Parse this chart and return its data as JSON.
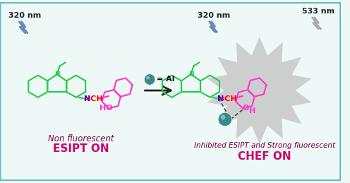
{
  "bg_color": "#eef8f7",
  "border_color": "#5bbcb8",
  "left_label_line1": "Non fluorescent",
  "left_label_line2": "ESIPT ON",
  "right_label_line1": "Inhibited ESIPT and Strong fluorescent",
  "right_label_line2": "CHEF ON",
  "lightning_color_blue": "#6688bb",
  "lightning_color_gray": "#aaaaaa",
  "carbazole_color": "#22cc44",
  "naphthol_color": "#ff33cc",
  "imine_n_color": "#0000ff",
  "imine_ch_color": "#ff0000",
  "label_dark_red": "#7a0045",
  "label_magenta": "#cc0066",
  "arrow_color": "#222222",
  "star_color": "#c8c8c8",
  "al_sphere_color": "#3a8888",
  "al_sphere_highlight": "#88cccc"
}
